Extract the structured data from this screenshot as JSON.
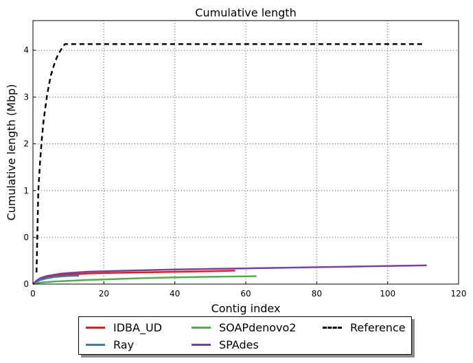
{
  "chart_data": {
    "type": "line",
    "title": "Cumulative length",
    "xlabel": "Contig index",
    "ylabel": "Cumulative length (Mbp)",
    "xlim": [
      0,
      120
    ],
    "x_ticks": [
      "0",
      "20",
      "40",
      "60",
      "80",
      "100",
      "120"
    ],
    "y_ticks": [
      "0",
      "0",
      "1",
      "2",
      "3",
      "4"
    ],
    "grid": true,
    "legend_position": "bottom-center-outside",
    "series": [
      {
        "name": "IDBA_UD",
        "color": "#e41a1c",
        "dashed": false,
        "x": [
          0,
          1,
          2,
          4,
          6,
          8,
          10,
          15,
          20,
          30,
          40,
          50,
          57
        ],
        "y": [
          0.0,
          0.05,
          0.09,
          0.12,
          0.14,
          0.155,
          0.165,
          0.18,
          0.19,
          0.2,
          0.21,
          0.22,
          0.23
        ]
      },
      {
        "name": "Ray",
        "color": "#377eb8",
        "dashed": false,
        "x": [
          0,
          1,
          2,
          4,
          6,
          8,
          10,
          13
        ],
        "y": [
          0.0,
          0.04,
          0.07,
          0.1,
          0.12,
          0.13,
          0.14,
          0.145
        ]
      },
      {
        "name": "SOAPdenovo2",
        "color": "#4daf4a",
        "dashed": false,
        "x": [
          0,
          1,
          2,
          4,
          6,
          8,
          10,
          15,
          20,
          30,
          40,
          50,
          63
        ],
        "y": [
          0.0,
          0.015,
          0.025,
          0.035,
          0.045,
          0.05,
          0.055,
          0.07,
          0.08,
          0.1,
          0.115,
          0.125,
          0.135
        ]
      },
      {
        "name": "SPAdes",
        "color": "#7b3fa0",
        "dashed": false,
        "x": [
          0,
          1,
          2,
          4,
          6,
          8,
          10,
          15,
          20,
          30,
          40,
          50,
          60,
          70,
          80,
          90,
          100,
          111
        ],
        "y": [
          0.0,
          0.06,
          0.1,
          0.14,
          0.16,
          0.18,
          0.19,
          0.21,
          0.22,
          0.235,
          0.25,
          0.26,
          0.27,
          0.28,
          0.29,
          0.3,
          0.31,
          0.32
        ]
      },
      {
        "name": "Reference",
        "color": "#000000",
        "dashed": true,
        "x": [
          1,
          1.5,
          2,
          2.5,
          3,
          4,
          5,
          6,
          7,
          8,
          9,
          20,
          40,
          60,
          80,
          100,
          110
        ],
        "y": [
          0.2,
          1.0,
          1.6,
          2.1,
          2.5,
          3.05,
          3.45,
          3.7,
          3.9,
          4.02,
          4.13,
          4.13,
          4.13,
          4.13,
          4.13,
          4.13,
          4.13
        ]
      }
    ]
  }
}
